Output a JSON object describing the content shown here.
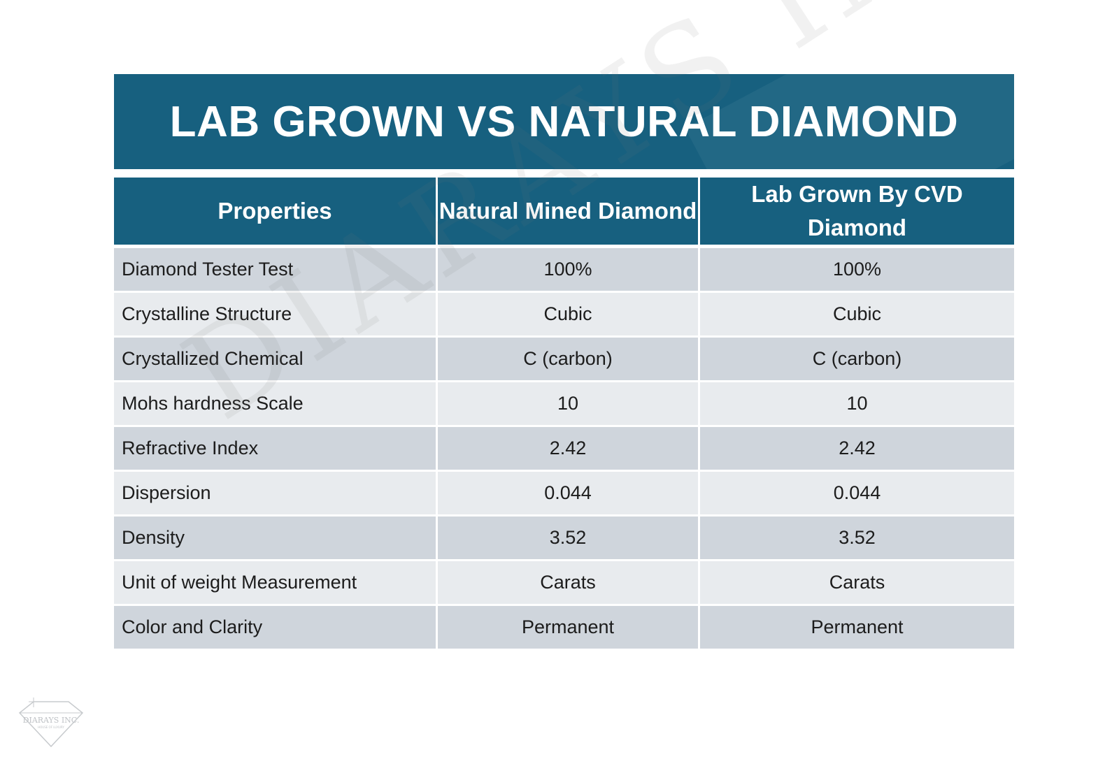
{
  "title": "LAB GROWN VS NATURAL DIAMOND",
  "table": {
    "headers": [
      "Properties",
      "Natural Mined Diamond",
      "Lab Grown By CVD Diamond"
    ],
    "rows": [
      {
        "property": "Diamond Tester Test",
        "natural": "100%",
        "lab": "100%"
      },
      {
        "property": "Crystalline Structure",
        "natural": "Cubic",
        "lab": "Cubic"
      },
      {
        "property": "Crystallized Chemical",
        "natural": "C (carbon)",
        "lab": "C (carbon)"
      },
      {
        "property": "Mohs hardness Scale",
        "natural": "10",
        "lab": "10"
      },
      {
        "property": "Refractive Index",
        "natural": "2.42",
        "lab": "2.42"
      },
      {
        "property": "Dispersion",
        "natural": "0.044",
        "lab": "0.044"
      },
      {
        "property": "Density",
        "natural": "3.52",
        "lab": "3.52"
      },
      {
        "property": "Unit of weight Measurement",
        "natural": "Carats",
        "lab": "Carats"
      },
      {
        "property": "Color and Clarity",
        "natural": "Permanent",
        "lab": "Permanent"
      }
    ]
  },
  "watermark": "DIARAYS INC.",
  "logo": {
    "text": "DIARAYS INC.",
    "tagline": "HOUSE OF LUXURY",
    "icon": "diamond-logo-icon"
  },
  "colors": {
    "header": "#17607f",
    "row_dark": "#cfd5dc",
    "row_light": "#e8ebee"
  }
}
